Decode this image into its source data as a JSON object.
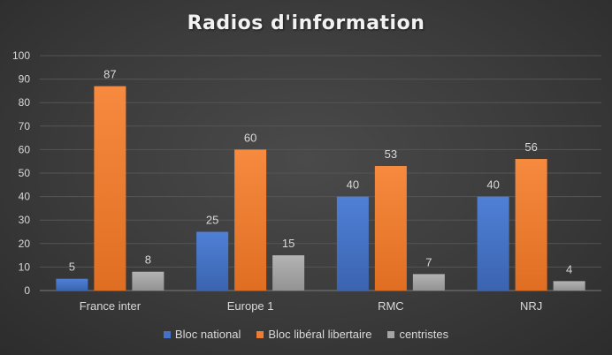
{
  "chart_data": {
    "type": "bar",
    "title": "Radios d'information",
    "categories": [
      "France inter",
      "Europe 1",
      "RMC",
      "NRJ"
    ],
    "series": [
      {
        "name": "Bloc national",
        "values": [
          5,
          25,
          40,
          40
        ],
        "color": "#4472c4"
      },
      {
        "name": "Bloc libéral libertaire",
        "values": [
          87,
          60,
          53,
          56
        ],
        "color": "#ed7d31"
      },
      {
        "name": "centristes",
        "values": [
          8,
          15,
          7,
          4
        ],
        "color": "#a5a5a5"
      }
    ],
    "y_ticks": [
      "0",
      "10",
      "20",
      "30",
      "40",
      "50",
      "60",
      "70",
      "80",
      "90",
      "100"
    ],
    "ylim": [
      0,
      100
    ],
    "grid": true,
    "legend_position": "bottom"
  }
}
